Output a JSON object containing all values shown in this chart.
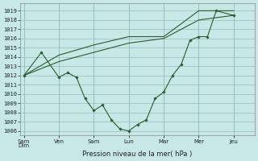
{
  "background_color": "#c8e8e8",
  "grid_color": "#99bbbb",
  "line_color": "#2a5c2a",
  "ylabel": "Pression niveau de la mer( hPa )",
  "ylim_min": 1005.5,
  "ylim_max": 1019.8,
  "yticks": [
    1006,
    1007,
    1008,
    1009,
    1010,
    1011,
    1012,
    1013,
    1014,
    1015,
    1016,
    1017,
    1018,
    1019
  ],
  "xlim_min": -0.2,
  "xlim_max": 13.2,
  "xtick_positions": [
    0,
    2,
    4,
    6,
    8,
    10,
    12
  ],
  "xtick_labels": [
    "Sam\nDim",
    "Ven",
    "Sam",
    "Lun",
    "Mar",
    "Mer",
    "Jeu"
  ],
  "line_smooth_low_x": [
    0,
    2,
    4,
    6,
    8,
    10,
    12
  ],
  "line_smooth_low_y": [
    1012.0,
    1013.5,
    1014.5,
    1015.5,
    1016.0,
    1018.0,
    1018.5
  ],
  "line_smooth_high_x": [
    0,
    2,
    4,
    6,
    8,
    10,
    12
  ],
  "line_smooth_high_y": [
    1012.0,
    1014.2,
    1015.3,
    1016.2,
    1016.2,
    1019.0,
    1019.0
  ],
  "line_detail_x": [
    0.0,
    1.0,
    2.0,
    2.5,
    3.0,
    3.5,
    4.0,
    4.5,
    5.0,
    5.5,
    6.0,
    6.5,
    7.0,
    7.5,
    8.0,
    8.5,
    9.0,
    9.5,
    10.0,
    10.5,
    11.0,
    12.0
  ],
  "line_detail_y": [
    1012.0,
    1014.5,
    1011.8,
    1012.3,
    1011.8,
    1009.5,
    1008.2,
    1008.8,
    1007.2,
    1006.2,
    1006.0,
    1006.7,
    1007.2,
    1009.5,
    1010.2,
    1012.0,
    1013.2,
    1015.8,
    1016.2,
    1016.2,
    1019.0,
    1018.5
  ]
}
